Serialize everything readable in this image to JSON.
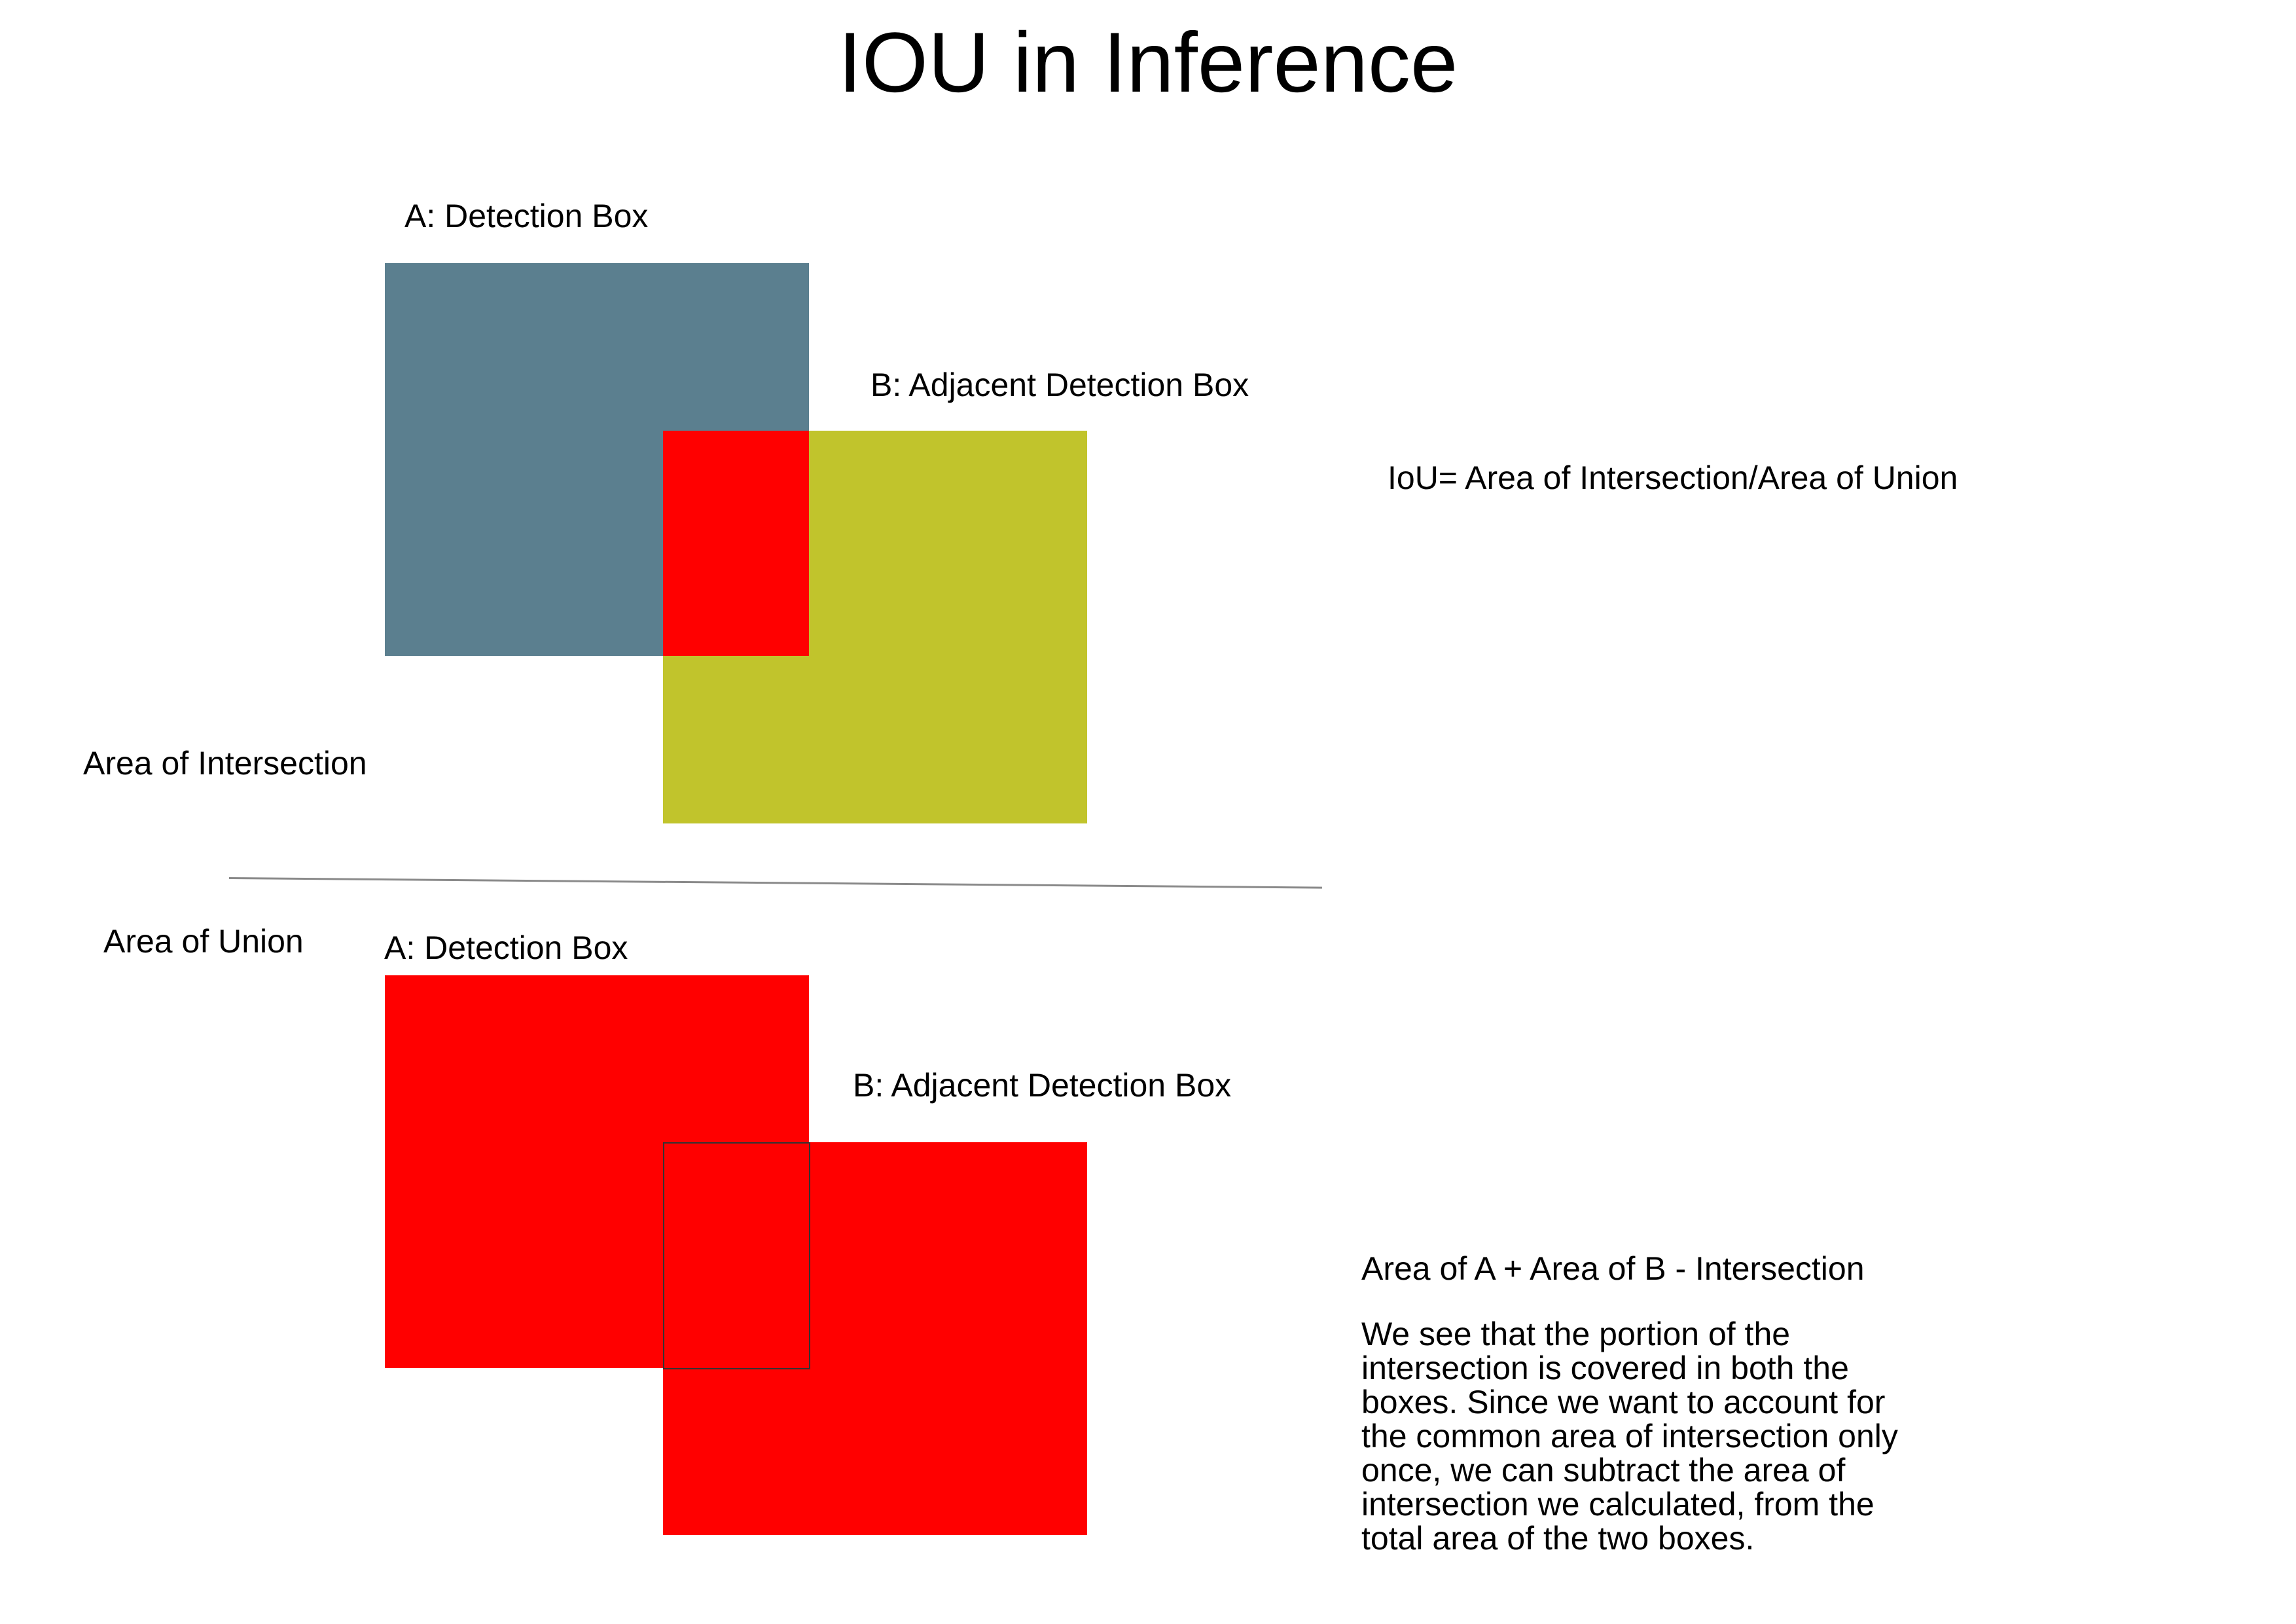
{
  "title": "IOU in Inference",
  "colors": {
    "box_a": "#5b7f8f",
    "box_b": "#c1c42c",
    "intersection": "#ff0000",
    "union": "#ff0000",
    "divider": "#8a8a8a",
    "overlap_outline": "#333333"
  },
  "intersection_section": {
    "box_a_label": "A: Detection Box",
    "box_b_label": "B: Adjacent Detection Box",
    "section_label": "Area of Intersection",
    "formula": "IoU= Area of Intersection/Area of Union"
  },
  "union_section": {
    "section_label": "Area of Union",
    "box_a_label": "A: Detection Box",
    "box_b_label": "B: Adjacent Detection Box",
    "formula": "Area of A + Area of B - Intersection",
    "explanation": "We see that the portion of the intersection is covered in both the boxes. Since we want to account for the common area of intersection only once, we can subtract the area of intersection we calculated, from the total area of the two boxes."
  }
}
